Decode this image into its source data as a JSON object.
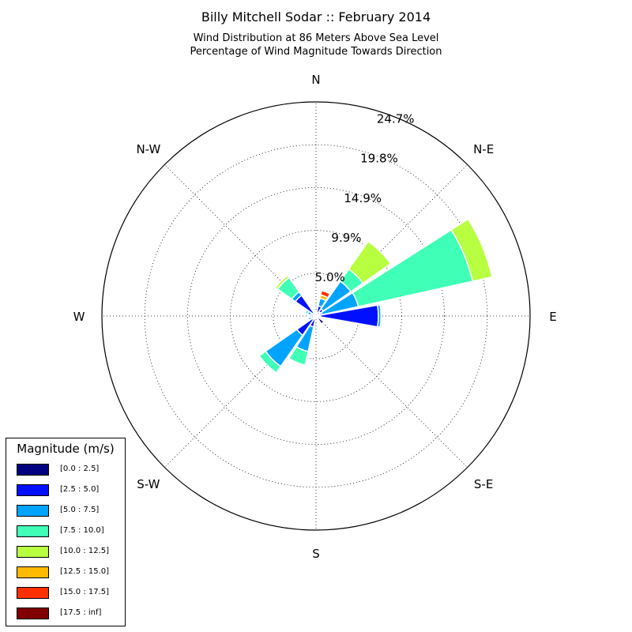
{
  "title": "Billy Mitchell Sodar :: February 2014",
  "subtitle_line1": "Wind Distribution at 86 Meters Above Sea Level",
  "subtitle_line2": "Percentage of Wind Magnitude Towards Direction",
  "chart_data": {
    "type": "windrose",
    "title": "Billy Mitchell Sodar :: February 2014",
    "subtitle": [
      "Wind Distribution at 86 Meters Above Sea Level",
      "Percentage of Wind Magnitude Towards Direction"
    ],
    "direction_labels": [
      "N",
      "N-E",
      "E",
      "S-E",
      "S",
      "S-W",
      "W",
      "N-W"
    ],
    "radial_ticks": [
      "5.0%",
      "9.9%",
      "14.9%",
      "19.8%",
      "24.7%"
    ],
    "radial_tick_values": [
      4.94,
      9.88,
      14.82,
      19.76,
      24.7
    ],
    "rmax": 24.7,
    "grid": true,
    "legend_title": "Magnitude (m/s)",
    "legend_position": "lower-left",
    "bins": [
      {
        "label": "[0.0 : 2.5]",
        "color": "#000080"
      },
      {
        "label": "[2.5 : 5.0]",
        "color": "#0010ff"
      },
      {
        "label": "[5.0 : 7.5]",
        "color": "#00a4ff"
      },
      {
        "label": "[7.5 : 10.0]",
        "color": "#40ffb7"
      },
      {
        "label": "[10.0 : 12.5]",
        "color": "#b7ff40"
      },
      {
        "label": "[12.5 : 15.0]",
        "color": "#ffb900"
      },
      {
        "label": "[15.0 : 17.5]",
        "color": "#ff3000"
      },
      {
        "label": "[17.5 : inf]",
        "color": "#800000"
      }
    ],
    "directions_deg": [
      0,
      22.5,
      45,
      67.5,
      90,
      112.5,
      135,
      157.5,
      180,
      202.5,
      225,
      247.5,
      270,
      292.5,
      315,
      337.5
    ],
    "values": [
      [
        0.3,
        0.0,
        0.0,
        0.0,
        0.0,
        0.2,
        0.0,
        0.0
      ],
      [
        0.4,
        0.8,
        0.9,
        0.0,
        0.0,
        0.4,
        0.5,
        0.0
      ],
      [
        0.6,
        0.4,
        3.9,
        1.7,
        3.9,
        0.0,
        0.0,
        0.0
      ],
      [
        0.5,
        0.2,
        4.3,
        13.5,
        2.3,
        0.0,
        0.0,
        0.0
      ],
      [
        0.5,
        6.7,
        0.3,
        0.0,
        0.0,
        0.0,
        0.0,
        0.0
      ],
      [
        0.4,
        0.0,
        0.0,
        0.0,
        0.0,
        0.0,
        0.0,
        0.0
      ],
      [
        1.1,
        0.0,
        0.0,
        0.0,
        0.0,
        0.0,
        0.0,
        0.0
      ],
      [
        0.3,
        0.0,
        0.0,
        0.0,
        0.0,
        0.0,
        0.0,
        0.0
      ],
      [
        0.3,
        0.0,
        0.0,
        0.0,
        0.0,
        0.0,
        0.0,
        0.0
      ],
      [
        0.3,
        1.0,
        2.9,
        1.6,
        0.0,
        0.0,
        0.0,
        0.0
      ],
      [
        0.5,
        2.2,
        4.4,
        0.9,
        0.0,
        0.0,
        0.0,
        0.0
      ],
      [
        0.3,
        0.3,
        0.3,
        0.0,
        0.0,
        0.0,
        0.0,
        0.0
      ],
      [
        0.3,
        0.3,
        0.2,
        0.0,
        0.0,
        0.0,
        0.0,
        0.0
      ],
      [
        0.3,
        0.3,
        0.4,
        0.3,
        0.0,
        0.0,
        0.0,
        0.0
      ],
      [
        0.3,
        2.6,
        0.5,
        2.0,
        0.3,
        0.0,
        0.0,
        0.0
      ],
      [
        0.2,
        0.0,
        0.0,
        0.0,
        0.0,
        0.0,
        0.0,
        0.0
      ]
    ]
  }
}
